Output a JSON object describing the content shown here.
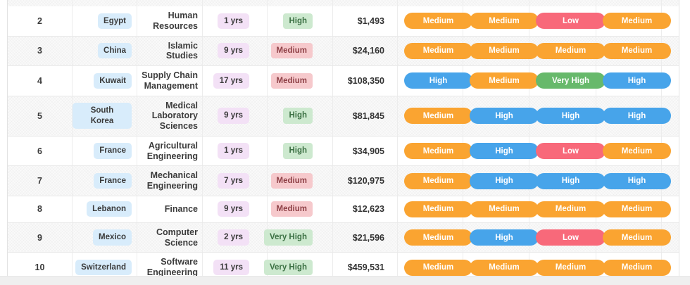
{
  "colors": {
    "rating_medium": "#faa431",
    "rating_high": "#47a4ea",
    "rating_low": "#f8697a",
    "rating_very_high": "#67b96b",
    "country_badge_bg": "#d8ecfb",
    "years_badge_bg": "#f3e1f6",
    "level_green_bg": "#cde9cf",
    "level_green_text": "#3c7144",
    "level_red_bg": "#f6c9cc",
    "level_red_text": "#8e4046",
    "stripe_bg": "#fafafa",
    "border": "#e9e9e9"
  },
  "table": {
    "rows": [
      {
        "rank": "2",
        "country": "Egypt",
        "field": "Human Resources",
        "years": "1 yrs",
        "level": {
          "label": "High",
          "variant": "green"
        },
        "salary": "$1,493",
        "ratings": [
          {
            "label": "Medium",
            "variant": "medium"
          },
          {
            "label": "Medium",
            "variant": "medium"
          },
          {
            "label": "Low",
            "variant": "low"
          },
          {
            "label": "Medium",
            "variant": "medium"
          }
        ]
      },
      {
        "rank": "3",
        "country": "China",
        "field": "Islamic Studies",
        "years": "9 yrs",
        "level": {
          "label": "Medium",
          "variant": "red"
        },
        "salary": "$24,160",
        "ratings": [
          {
            "label": "Medium",
            "variant": "medium"
          },
          {
            "label": "Medium",
            "variant": "medium"
          },
          {
            "label": "Medium",
            "variant": "medium"
          },
          {
            "label": "Medium",
            "variant": "medium"
          }
        ]
      },
      {
        "rank": "4",
        "country": "Kuwait",
        "field": "Supply Chain Management",
        "years": "17 yrs",
        "level": {
          "label": "Medium",
          "variant": "red"
        },
        "salary": "$108,350",
        "ratings": [
          {
            "label": "High",
            "variant": "high"
          },
          {
            "label": "Medium",
            "variant": "medium"
          },
          {
            "label": "Very High",
            "variant": "very-high"
          },
          {
            "label": "High",
            "variant": "high"
          }
        ]
      },
      {
        "rank": "5",
        "country": "South Korea",
        "field": "Medical Laboratory Sciences",
        "years": "9 yrs",
        "level": {
          "label": "High",
          "variant": "green"
        },
        "salary": "$81,845",
        "ratings": [
          {
            "label": "Medium",
            "variant": "medium"
          },
          {
            "label": "High",
            "variant": "high"
          },
          {
            "label": "High",
            "variant": "high"
          },
          {
            "label": "High",
            "variant": "high"
          }
        ]
      },
      {
        "rank": "6",
        "country": "France",
        "field": "Agricultural Engineering",
        "years": "1 yrs",
        "level": {
          "label": "High",
          "variant": "green"
        },
        "salary": "$34,905",
        "ratings": [
          {
            "label": "Medium",
            "variant": "medium"
          },
          {
            "label": "High",
            "variant": "high"
          },
          {
            "label": "Low",
            "variant": "low"
          },
          {
            "label": "Medium",
            "variant": "medium"
          }
        ]
      },
      {
        "rank": "7",
        "country": "France",
        "field": "Mechanical Engineering",
        "years": "7 yrs",
        "level": {
          "label": "Medium",
          "variant": "red"
        },
        "salary": "$120,975",
        "ratings": [
          {
            "label": "Medium",
            "variant": "medium"
          },
          {
            "label": "High",
            "variant": "high"
          },
          {
            "label": "High",
            "variant": "high"
          },
          {
            "label": "High",
            "variant": "high"
          }
        ]
      },
      {
        "rank": "8",
        "country": "Lebanon",
        "field": "Finance",
        "years": "9 yrs",
        "level": {
          "label": "Medium",
          "variant": "red"
        },
        "salary": "$12,623",
        "ratings": [
          {
            "label": "Medium",
            "variant": "medium"
          },
          {
            "label": "Medium",
            "variant": "medium"
          },
          {
            "label": "Medium",
            "variant": "medium"
          },
          {
            "label": "Medium",
            "variant": "medium"
          }
        ]
      },
      {
        "rank": "9",
        "country": "Mexico",
        "field": "Computer Science",
        "years": "2 yrs",
        "level": {
          "label": "Very High",
          "variant": "green"
        },
        "salary": "$21,596",
        "ratings": [
          {
            "label": "Medium",
            "variant": "medium"
          },
          {
            "label": "High",
            "variant": "high"
          },
          {
            "label": "Low",
            "variant": "low"
          },
          {
            "label": "Medium",
            "variant": "medium"
          }
        ]
      },
      {
        "rank": "10",
        "country": "Switzerland",
        "field": "Software Engineering",
        "years": "11 yrs",
        "level": {
          "label": "Very High",
          "variant": "green"
        },
        "salary": "$459,531",
        "ratings": [
          {
            "label": "Medium",
            "variant": "medium"
          },
          {
            "label": "Medium",
            "variant": "medium"
          },
          {
            "label": "Medium",
            "variant": "medium"
          },
          {
            "label": "Medium",
            "variant": "medium"
          }
        ]
      }
    ]
  }
}
